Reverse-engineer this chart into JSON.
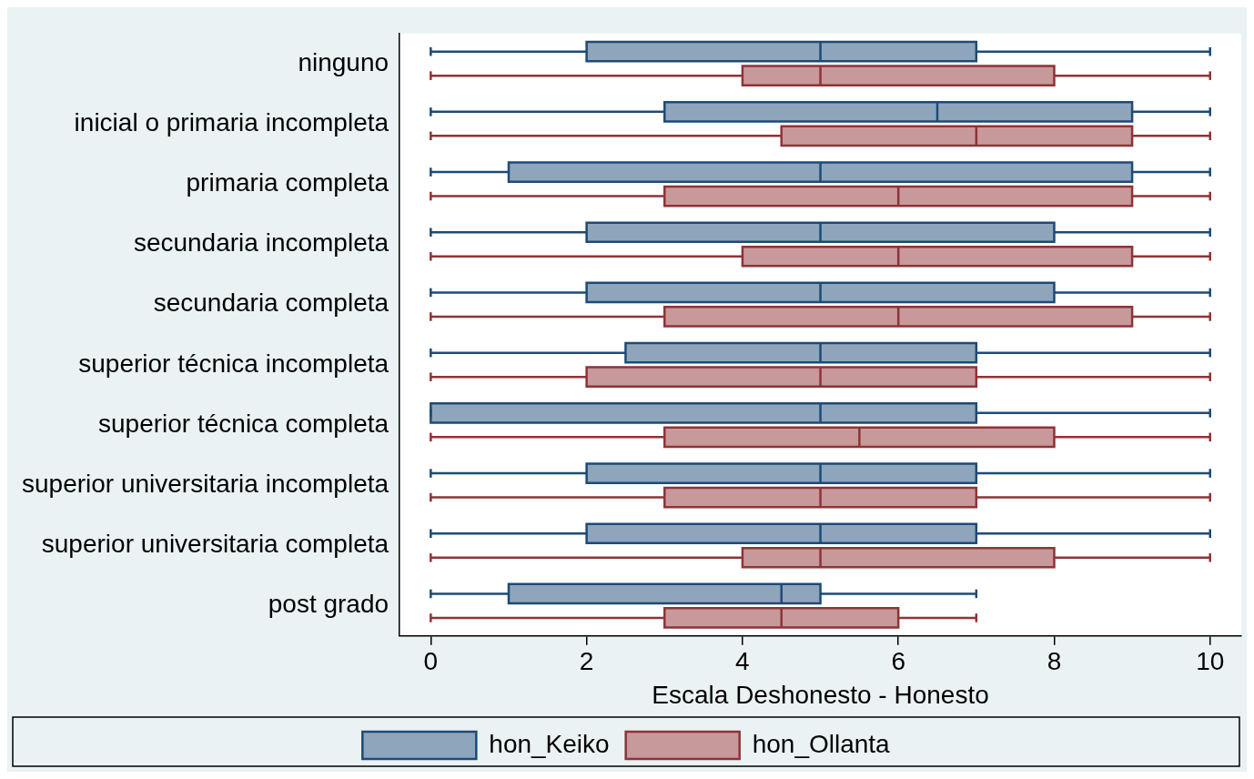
{
  "chart_data": {
    "type": "box",
    "orientation": "horizontal",
    "xlabel": "Escala Deshonesto - Honesto",
    "categories": [
      "ninguno",
      "inicial o primaria incompleta",
      "primaria completa",
      "secundaria incompleta",
      "secundaria completa",
      "superior técnica incompleta",
      "superior técnica completa",
      "superior universitaria incompleta",
      "superior universitaria completa",
      "post grado"
    ],
    "xlim": [
      -0.4,
      10.4
    ],
    "xticks": [
      0,
      2,
      4,
      6,
      8,
      10
    ],
    "grid": false,
    "legend": "bottom",
    "series": [
      {
        "name": "hon_Keiko",
        "color": "#8ea5bb",
        "boxes": [
          {
            "low": 0,
            "q1": 2,
            "median": 5,
            "q3": 7,
            "high": 10
          },
          {
            "low": 0,
            "q1": 3,
            "median": 6.5,
            "q3": 9,
            "high": 10
          },
          {
            "low": 0,
            "q1": 1,
            "median": 5,
            "q3": 9,
            "high": 10
          },
          {
            "low": 0,
            "q1": 2,
            "median": 5,
            "q3": 8,
            "high": 10
          },
          {
            "low": 0,
            "q1": 2,
            "median": 5,
            "q3": 8,
            "high": 10
          },
          {
            "low": 0,
            "q1": 2.5,
            "median": 5,
            "q3": 7,
            "high": 10
          },
          {
            "low": 0,
            "q1": 0,
            "median": 5,
            "q3": 7,
            "high": 10
          },
          {
            "low": 0,
            "q1": 2,
            "median": 5,
            "q3": 7,
            "high": 10
          },
          {
            "low": 0,
            "q1": 2,
            "median": 5,
            "q3": 7,
            "high": 10
          },
          {
            "low": 0,
            "q1": 1,
            "median": 4.5,
            "q3": 5,
            "high": 7
          }
        ]
      },
      {
        "name": "hon_Ollanta",
        "color": "#c7999b",
        "boxes": [
          {
            "low": 0,
            "q1": 4,
            "median": 5,
            "q3": 8,
            "high": 10
          },
          {
            "low": 0,
            "q1": 4.5,
            "median": 7,
            "q3": 9,
            "high": 10
          },
          {
            "low": 0,
            "q1": 3,
            "median": 6,
            "q3": 9,
            "high": 10
          },
          {
            "low": 0,
            "q1": 4,
            "median": 6,
            "q3": 9,
            "high": 10
          },
          {
            "low": 0,
            "q1": 3,
            "median": 6,
            "q3": 9,
            "high": 10
          },
          {
            "low": 0,
            "q1": 2,
            "median": 5,
            "q3": 7,
            "high": 10
          },
          {
            "low": 0,
            "q1": 3,
            "median": 5.5,
            "q3": 8,
            "high": 10
          },
          {
            "low": 0,
            "q1": 3,
            "median": 5,
            "q3": 7,
            "high": 10
          },
          {
            "low": 0,
            "q1": 4,
            "median": 5,
            "q3": 8,
            "high": 10
          },
          {
            "low": 0,
            "q1": 3,
            "median": 4.5,
            "q3": 6,
            "high": 7
          }
        ]
      }
    ]
  }
}
